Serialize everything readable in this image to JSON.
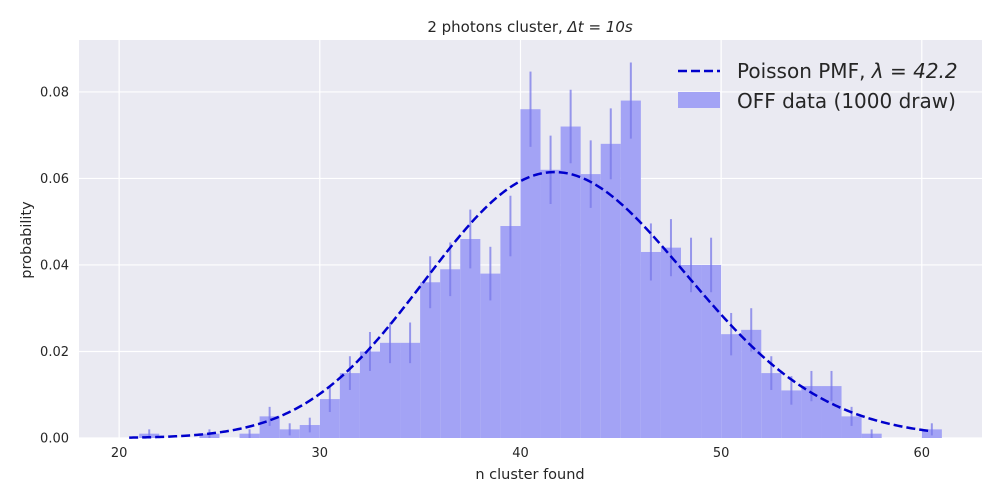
{
  "chart_data": {
    "type": "bar",
    "title_prefix": "2 photons cluster, ",
    "title_math": "Δt = 10s",
    "xlabel": "n cluster found",
    "ylabel": "probability",
    "xlim": [
      18,
      63
    ],
    "ylim": [
      0,
      0.092
    ],
    "xticks": [
      20,
      30,
      40,
      50,
      60
    ],
    "yticks": [
      0.0,
      0.02,
      0.04,
      0.06,
      0.08
    ],
    "ytick_labels": [
      "0.00",
      "0.02",
      "0.04",
      "0.06",
      "0.08"
    ],
    "grid": true,
    "legend_position": "top-right",
    "colors": {
      "background": "#eaeaf2",
      "bars": "#a3a3f5",
      "errorbars": "#7878e8",
      "line": "#0000cc",
      "grid": "#ffffff"
    },
    "series": [
      {
        "name": "OFF data (1000 draw)",
        "kind": "histogram",
        "bin_starts": [
          21,
          22,
          23,
          24,
          25,
          26,
          27,
          28,
          29,
          30,
          31,
          32,
          33,
          34,
          35,
          36,
          37,
          38,
          39,
          40,
          41,
          42,
          43,
          44,
          45,
          46,
          47,
          48,
          49,
          50,
          51,
          52,
          53,
          54,
          55,
          56,
          57,
          58,
          59,
          60
        ],
        "values": [
          0.001,
          0,
          0,
          0.001,
          0,
          0.001,
          0.005,
          0.002,
          0.003,
          0.009,
          0.015,
          0.02,
          0.022,
          0.022,
          0.036,
          0.039,
          0.046,
          0.038,
          0.049,
          0.076,
          0.062,
          0.072,
          0.061,
          0.068,
          0.078,
          0.043,
          0.044,
          0.04,
          0.04,
          0.024,
          0.025,
          0.015,
          0.011,
          0.012,
          0.012,
          0.005,
          0.001,
          0,
          0,
          0.002
        ],
        "errors": [
          0.001,
          0,
          0,
          0.001,
          0,
          0.001,
          0.0022,
          0.0014,
          0.0017,
          0.003,
          0.0039,
          0.0045,
          0.0047,
          0.0047,
          0.006,
          0.0062,
          0.0068,
          0.0062,
          0.007,
          0.0087,
          0.0079,
          0.0085,
          0.0078,
          0.0082,
          0.0088,
          0.0066,
          0.0066,
          0.0063,
          0.0063,
          0.0049,
          0.005,
          0.0039,
          0.0033,
          0.0035,
          0.0035,
          0.0022,
          0.001,
          0,
          0,
          0.0014
        ]
      },
      {
        "name_prefix": "Poisson PMF, ",
        "name_math": "λ = 42.2",
        "kind": "line",
        "lambda": 42.2,
        "x_range": [
          20.5,
          60.5
        ]
      }
    ]
  }
}
